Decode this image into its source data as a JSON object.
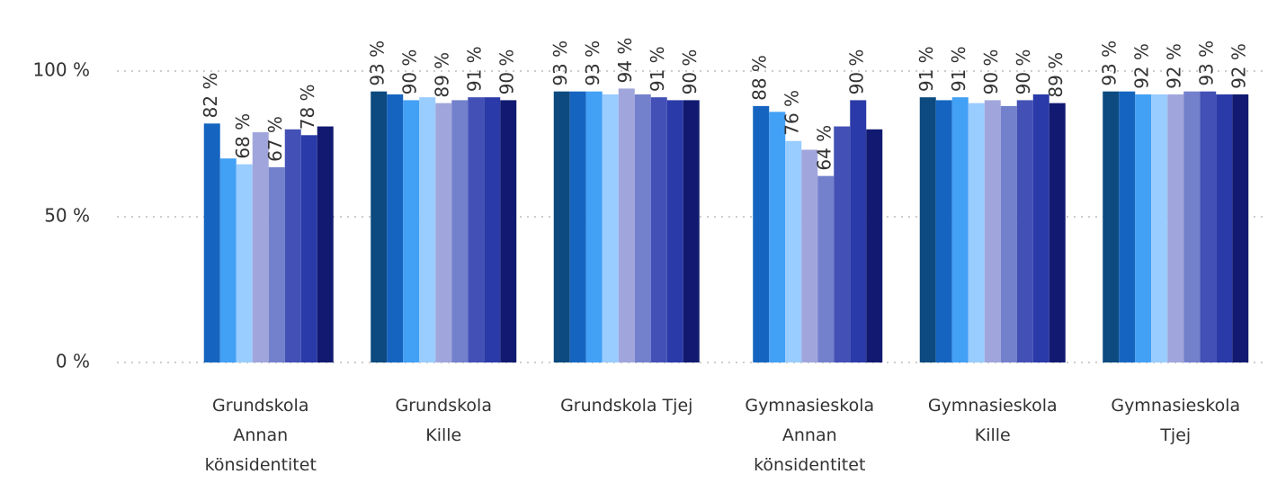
{
  "chart_data": {
    "type": "bar",
    "categories": [
      "Grundskola Annan könsidentitet",
      "Grundskola Kille",
      "Grundskola Tjej",
      "Gymnasieskola Annan könsidentitet",
      "Gymnasieskola Kille",
      "Gymnasieskola Tjej"
    ],
    "series": [
      {
        "color": "#0c4a80",
        "values": [
          null,
          93,
          93,
          null,
          91,
          93
        ],
        "value_labels": [
          null,
          "93 %",
          "93 %",
          null,
          "91 %",
          "93 %"
        ]
      },
      {
        "color": "#1565c0",
        "values": [
          82,
          92,
          93,
          88,
          90,
          93
        ],
        "value_labels": [
          "82 %",
          null,
          null,
          "88 %",
          null,
          null
        ]
      },
      {
        "color": "#42a0f5",
        "values": [
          70,
          90,
          93,
          86,
          91,
          92
        ],
        "value_labels": [
          null,
          "90 %",
          "93 %",
          null,
          "91 %",
          "92 %"
        ]
      },
      {
        "color": "#99ccff",
        "values": [
          68,
          91,
          92,
          76,
          89,
          92
        ],
        "value_labels": [
          "68 %",
          null,
          null,
          "76 %",
          null,
          null
        ]
      },
      {
        "color": "#a0a6dc",
        "values": [
          79,
          89,
          94,
          73,
          90,
          92
        ],
        "value_labels": [
          null,
          "89 %",
          "94 %",
          null,
          "90 %",
          "92 %"
        ]
      },
      {
        "color": "#7380cc",
        "values": [
          67,
          90,
          92,
          64,
          88,
          93
        ],
        "value_labels": [
          "67 %",
          null,
          null,
          "64 %",
          null,
          null
        ]
      },
      {
        "color": "#4350b5",
        "values": [
          80,
          91,
          91,
          81,
          90,
          93
        ],
        "value_labels": [
          null,
          "91 %",
          "91 %",
          null,
          "90 %",
          "93 %"
        ]
      },
      {
        "color": "#2a3aa8",
        "values": [
          78,
          91,
          90,
          90,
          92,
          92
        ],
        "value_labels": [
          "78 %",
          null,
          null,
          "90 %",
          null,
          null
        ]
      },
      {
        "color": "#111a70",
        "values": [
          81,
          90,
          90,
          80,
          89,
          92
        ],
        "value_labels": [
          null,
          "90 %",
          "90 %",
          null,
          "89 %",
          "92 %"
        ]
      }
    ],
    "ylim": [
      0,
      100
    ],
    "yticks": [
      {
        "value": 0,
        "label": "0 %"
      },
      {
        "value": 50,
        "label": "50 %"
      },
      {
        "value": 100,
        "label": "100 %"
      }
    ],
    "grid": true
  }
}
